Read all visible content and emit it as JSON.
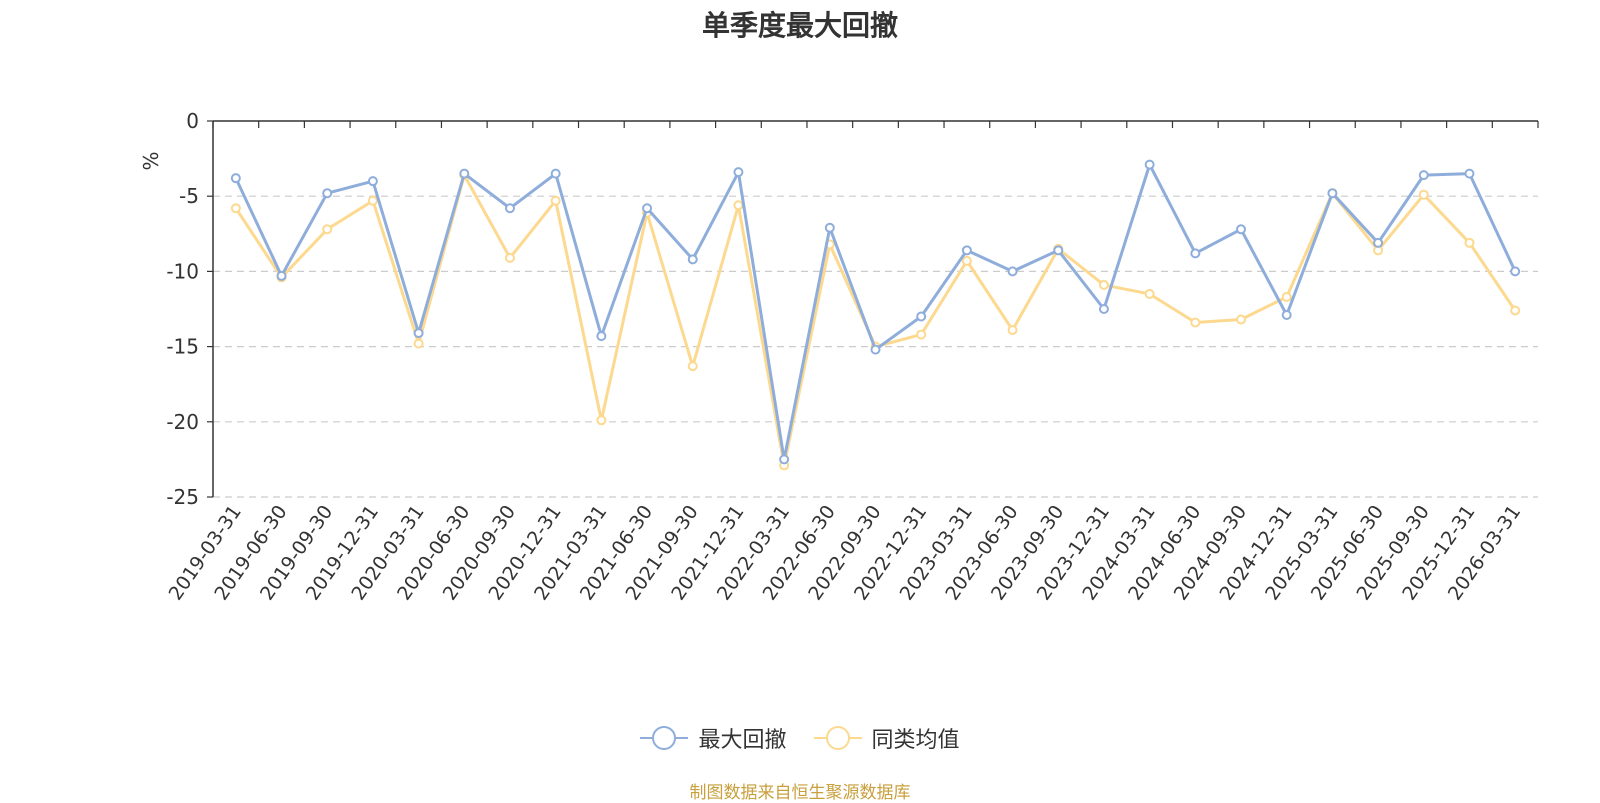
{
  "chart_data": {
    "type": "line",
    "title": "单季度最大回撤",
    "ylabel": "%",
    "xlabel": "",
    "ylim": [
      -25,
      0
    ],
    "yticks": [
      0,
      -5,
      -10,
      -15,
      -20,
      -25
    ],
    "categories": [
      "2019-03-31",
      "2019-06-30",
      "2019-09-30",
      "2019-12-31",
      "2020-03-31",
      "2020-06-30",
      "2020-09-30",
      "2020-12-31",
      "2021-03-31",
      "2021-06-30",
      "2021-09-30",
      "2021-12-31",
      "2022-03-31",
      "2022-06-30",
      "2022-09-30",
      "2022-12-31",
      "2023-03-31",
      "2023-06-30",
      "2023-09-30",
      "2023-12-31",
      "2024-03-31",
      "2024-06-30",
      "2024-09-30",
      "2024-12-31",
      "2025-03-31",
      "2025-06-30",
      "2025-09-30",
      "2025-12-31",
      "2026-03-31"
    ],
    "series": [
      {
        "name": "最大回撤",
        "color": "#8eaddb",
        "values": [
          -3.8,
          -10.3,
          -4.8,
          -4.0,
          -14.1,
          -3.5,
          -5.8,
          -3.5,
          -14.3,
          -5.8,
          -9.2,
          -3.4,
          -22.5,
          -7.1,
          -15.2,
          -13.0,
          -8.6,
          -10.0,
          -8.6,
          -12.5,
          -2.9,
          -8.8,
          -7.2,
          -12.9,
          -4.8,
          -8.1,
          -3.6,
          -3.5,
          -10.0
        ]
      },
      {
        "name": "同类均值",
        "color": "#fcd98f",
        "values": [
          -5.8,
          -10.4,
          -7.2,
          -5.3,
          -14.8,
          -3.6,
          -9.1,
          -5.3,
          -19.9,
          -6.1,
          -16.3,
          -5.6,
          -22.9,
          -8.2,
          -15.0,
          -14.2,
          -9.3,
          -13.9,
          -8.5,
          -10.9,
          -11.5,
          -13.4,
          -13.2,
          -11.7,
          -4.8,
          -8.6,
          -4.9,
          -8.1,
          -12.6
        ]
      }
    ]
  },
  "legend": {
    "items": [
      {
        "label": "最大回撤",
        "color": "#8eaddb"
      },
      {
        "label": "同类均值",
        "color": "#fcd98f"
      }
    ]
  },
  "source": {
    "text": "制图数据来自恒生聚源数据库",
    "color": "#c8a03c"
  },
  "colors": {
    "axis": "#333333",
    "grid": "#cccccc",
    "ylabel": "#ff0000"
  }
}
